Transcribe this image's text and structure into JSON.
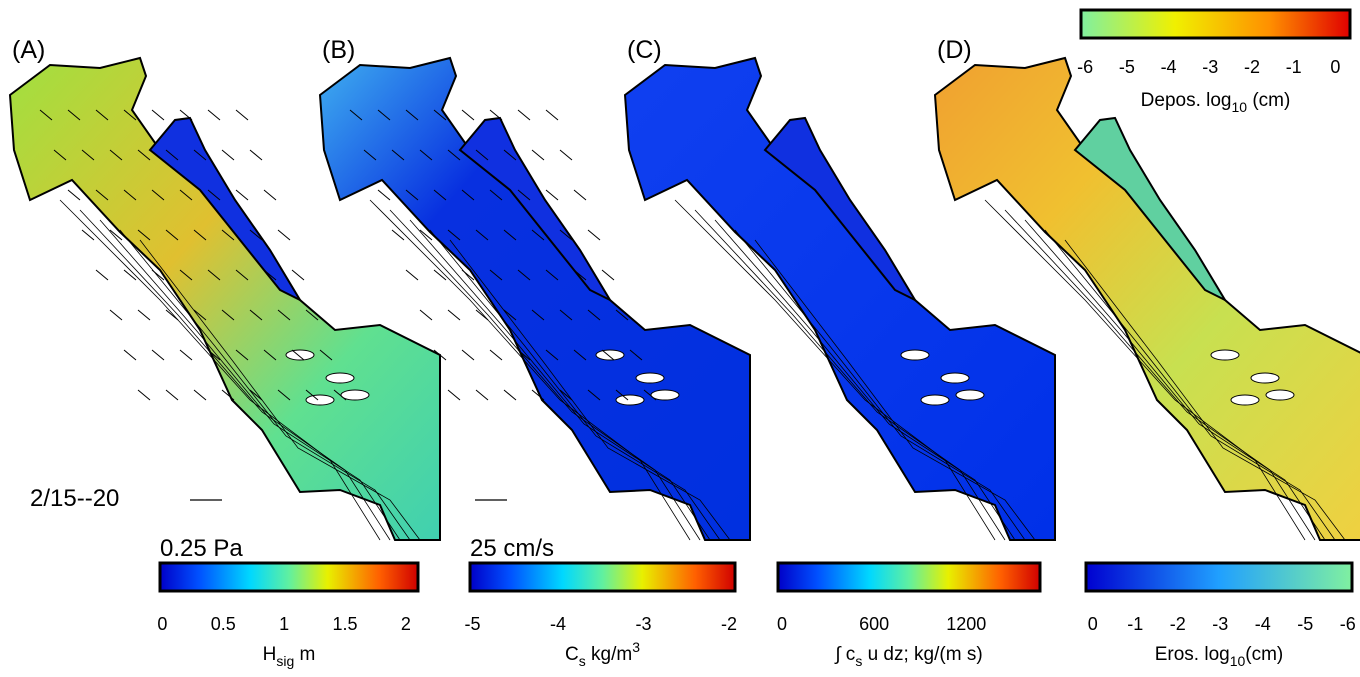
{
  "date_label": "2/15--20",
  "panels": [
    {
      "label": "(A)",
      "scale_label": "0.25 Pa",
      "colorbar": {
        "range": [
          -0.02,
          2.1
        ],
        "ticks": [
          0,
          0.5,
          1,
          1.5,
          2
        ],
        "title": [
          {
            "text": "H"
          },
          {
            "sub": "sig"
          },
          {
            "text": " m"
          }
        ]
      }
    },
    {
      "label": "(B)",
      "scale_label": "25 cm/s",
      "colorbar": {
        "range": [
          -5.03,
          -1.93
        ],
        "ticks": [
          -5,
          -4,
          -3,
          -2
        ],
        "title": [
          {
            "text": "C"
          },
          {
            "sub": "s"
          },
          {
            "text": " kg/m"
          },
          {
            "sup": "3"
          }
        ]
      }
    },
    {
      "label": "(C)",
      "colorbar": {
        "range": [
          -26,
          1680
        ],
        "ticks": [
          0,
          600,
          1200
        ],
        "title": [
          {
            "text": "∫ c"
          },
          {
            "sub": "s"
          },
          {
            "text": " u dz; kg/(m s)"
          }
        ]
      }
    },
    {
      "label": "(D)",
      "colorbar": {
        "range": [
          0.16,
          -6.1
        ],
        "ticks": [
          0,
          -1,
          -2,
          -3,
          -4,
          -5,
          -6
        ],
        "title": [
          {
            "text": "Eros. log"
          },
          {
            "sub": "10"
          },
          {
            "text": "(cm)"
          }
        ]
      },
      "colorbar_top": {
        "range": [
          -6.1,
          0.35
        ],
        "ticks": [
          -6,
          -5,
          -4,
          -3,
          -2,
          -1,
          0
        ],
        "title": [
          {
            "text": "Depos. log"
          },
          {
            "sub": "10"
          },
          {
            "text": " (cm)"
          }
        ]
      }
    }
  ]
}
